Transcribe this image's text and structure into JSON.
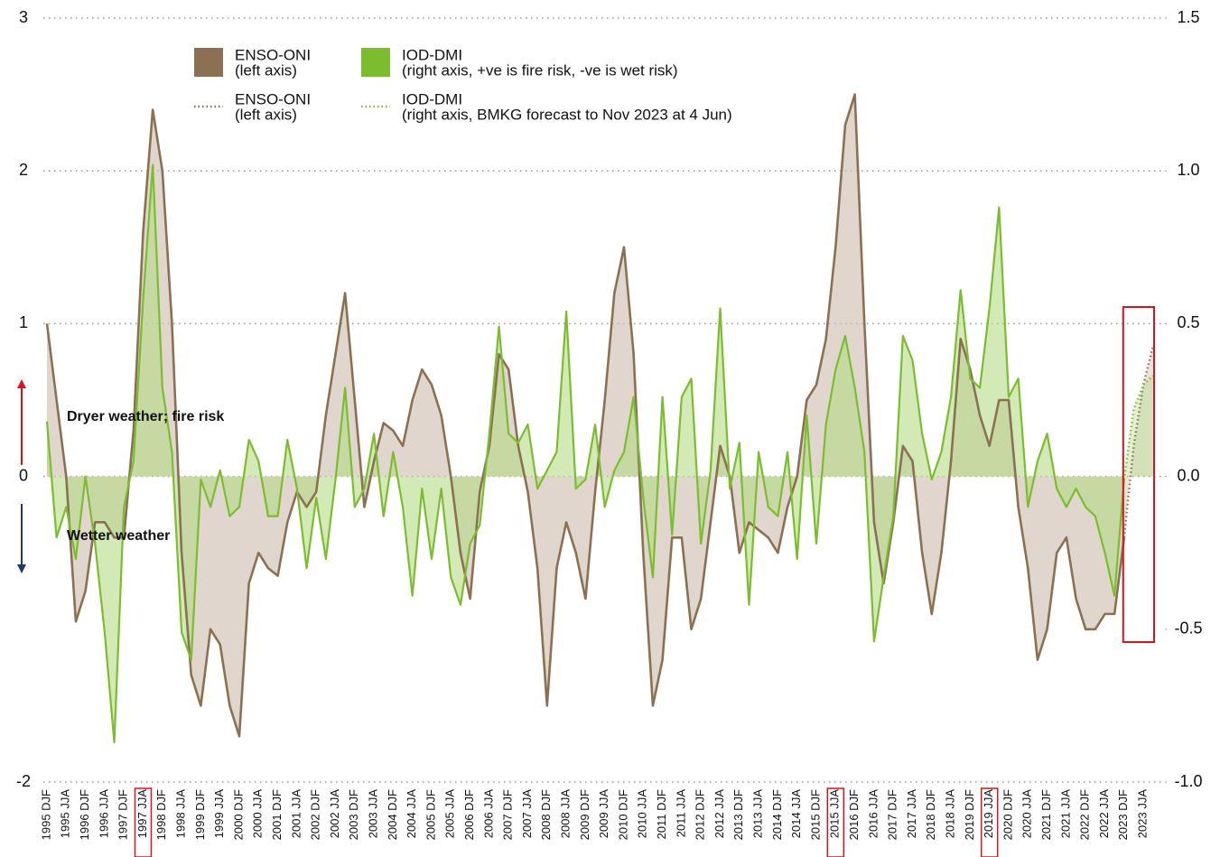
{
  "chart_data": {
    "type": "line",
    "annotations": [
      "Dryer weather; fire risk",
      "Wetter weather"
    ],
    "categories": [
      "1995 DJF",
      null,
      "1995 JJA",
      null,
      "1996 DJF",
      null,
      "1996 JJA",
      null,
      "1997 DJF",
      null,
      "1997 JJA",
      null,
      "1998 DJF",
      null,
      "1998 JJA",
      null,
      "1999 DJF",
      null,
      "1999 JJA",
      null,
      "2000 DJF",
      null,
      "2000 JJA",
      null,
      "2001 DJF",
      null,
      "2001 JJA",
      null,
      "2002 DJF",
      null,
      "2002 JJA",
      null,
      "2003 DJF",
      null,
      "2003 JJA",
      null,
      "2004 DJF",
      null,
      "2004 JJA",
      null,
      "2005 DJF",
      null,
      "2005 JJA",
      null,
      "2006 DJF",
      null,
      "2006 JJA",
      null,
      "2007 DJF",
      null,
      "2007 JJA",
      null,
      "2008 DJF",
      null,
      "2008 JJA",
      null,
      "2009 DJF",
      null,
      "2009 JJA",
      null,
      "2010 DJF",
      null,
      "2010 JJA",
      null,
      "2011 DJF",
      null,
      "2011 JJA",
      null,
      "2012 DJF",
      null,
      "2012 JJA",
      null,
      "2013 DJF",
      null,
      "2013 JJA",
      null,
      "2014 DJF",
      null,
      "2014 JJA",
      null,
      "2015 DJF",
      null,
      "2015 JJA",
      null,
      "2016 DJF",
      null,
      "2016 JJA",
      null,
      "2017 DJF",
      null,
      "2017 JJA",
      null,
      "2018 DJF",
      null,
      "2018 JJA",
      null,
      "2019 DJF",
      null,
      "2019 JJA",
      null,
      "2020 DJF",
      null,
      "2020 JJA",
      null,
      "2021 DJF",
      null,
      "2021 JJA",
      null,
      "2022 DJF",
      null,
      "2022 JJA",
      null,
      "2023 DJF",
      null,
      "2023 JJA",
      null
    ],
    "highlighted_categories": [
      10,
      82,
      98
    ],
    "series": [
      {
        "name": "ENSO-ONI",
        "legend_note": "(left axis)",
        "color": "#8b7152",
        "fill": "#cbbbab",
        "style": "solid",
        "axis": "y",
        "values": [
          1.0,
          0.5,
          0.0,
          -0.95,
          -0.75,
          -0.3,
          -0.3,
          -0.4,
          -0.4,
          0.3,
          1.6,
          2.4,
          2.0,
          1.0,
          -0.5,
          -1.3,
          -1.5,
          -1.0,
          -1.1,
          -1.5,
          -1.7,
          -0.7,
          -0.5,
          -0.6,
          -0.65,
          -0.3,
          -0.1,
          -0.2,
          -0.1,
          0.4,
          0.8,
          1.2,
          0.5,
          -0.2,
          0.1,
          0.35,
          0.3,
          0.2,
          0.5,
          0.7,
          0.6,
          0.4,
          0.0,
          -0.5,
          -0.8,
          -0.1,
          0.2,
          0.8,
          0.7,
          0.2,
          -0.1,
          -0.6,
          -1.5,
          -0.6,
          -0.3,
          -0.5,
          -0.8,
          -0.1,
          0.5,
          1.2,
          1.5,
          0.8,
          -0.5,
          -1.5,
          -1.2,
          -0.4,
          -0.4,
          -1.0,
          -0.8,
          -0.3,
          0.2,
          0.0,
          -0.5,
          -0.3,
          -0.35,
          -0.4,
          -0.5,
          -0.2,
          0.0,
          0.5,
          0.6,
          0.9,
          1.5,
          2.3,
          2.5,
          1.0,
          -0.3,
          -0.7,
          -0.3,
          0.2,
          0.1,
          -0.5,
          -0.9,
          -0.5,
          0.1,
          0.9,
          0.7,
          0.4,
          0.2,
          0.5,
          0.5,
          -0.2,
          -0.6,
          -1.2,
          -1.0,
          -0.5,
          -0.4,
          -0.8,
          -1.0,
          -1.0,
          -0.9,
          -0.9,
          -0.4,
          null,
          null,
          null
        ]
      },
      {
        "name": "IOD-DMI",
        "legend_note": "(right axis, +ve is fire risk, -ve is wet risk)",
        "color": "#7bbd2f",
        "fill": "#b5da85",
        "style": "solid",
        "axis": "y2",
        "values": [
          0.18,
          -0.2,
          -0.1,
          -0.27,
          0.0,
          -0.22,
          -0.51,
          -0.87,
          -0.1,
          0.05,
          0.58,
          1.02,
          0.29,
          0.08,
          -0.51,
          -0.6,
          -0.01,
          -0.1,
          0.02,
          -0.13,
          -0.1,
          0.12,
          0.05,
          -0.13,
          -0.13,
          0.12,
          -0.04,
          -0.3,
          -0.07,
          -0.27,
          -0.01,
          0.29,
          -0.1,
          -0.04,
          0.14,
          -0.13,
          0.08,
          -0.1,
          -0.39,
          -0.04,
          -0.27,
          -0.04,
          -0.33,
          -0.42,
          -0.22,
          -0.16,
          0.14,
          0.49,
          0.14,
          0.11,
          0.17,
          -0.04,
          0.02,
          0.08,
          0.54,
          -0.04,
          -0.01,
          0.17,
          -0.1,
          0.02,
          0.08,
          0.26,
          -0.07,
          -0.33,
          0.26,
          -0.19,
          0.26,
          0.32,
          -0.22,
          0.02,
          0.55,
          -0.04,
          0.11,
          -0.42,
          0.08,
          -0.1,
          -0.13,
          0.08,
          -0.27,
          0.2,
          -0.22,
          0.17,
          0.35,
          0.46,
          0.29,
          0.08,
          -0.54,
          -0.33,
          -0.13,
          0.46,
          0.38,
          0.14,
          -0.01,
          0.08,
          0.26,
          0.61,
          0.32,
          0.29,
          0.55,
          0.88,
          0.26,
          0.32,
          -0.1,
          0.05,
          0.14,
          -0.04,
          -0.1,
          -0.04,
          -0.1,
          -0.13,
          -0.25,
          -0.39,
          -0.01,
          null,
          null,
          null
        ]
      },
      {
        "name": "ENSO-ONI",
        "legend_note": "(left axis)",
        "color": "#8b7152",
        "fill": "#cbbbab",
        "style": "dotted",
        "axis": "y",
        "values": [
          null,
          null,
          null,
          null,
          null,
          null,
          null,
          null,
          null,
          null,
          null,
          null,
          null,
          null,
          null,
          null,
          null,
          null,
          null,
          null,
          null,
          null,
          null,
          null,
          null,
          null,
          null,
          null,
          null,
          null,
          null,
          null,
          null,
          null,
          null,
          null,
          null,
          null,
          null,
          null,
          null,
          null,
          null,
          null,
          null,
          null,
          null,
          null,
          null,
          null,
          null,
          null,
          null,
          null,
          null,
          null,
          null,
          null,
          null,
          null,
          null,
          null,
          null,
          null,
          null,
          null,
          null,
          null,
          null,
          null,
          null,
          null,
          null,
          null,
          null,
          null,
          null,
          null,
          null,
          null,
          null,
          null,
          null,
          null,
          null,
          null,
          null,
          null,
          null,
          null,
          null,
          null,
          null,
          null,
          null,
          null,
          null,
          null,
          null,
          null,
          null,
          null,
          null,
          null,
          null,
          null,
          null,
          null,
          null,
          null,
          null,
          null,
          -0.4,
          0.2,
          0.6,
          0.85
        ]
      },
      {
        "name": "IOD-DMI",
        "legend_note": "(right axis, BMKG forecast to Nov 2023 at 4 Jun)",
        "color": "#7bbd2f",
        "fill": "#b5da85",
        "style": "dotted",
        "axis": "y2",
        "values": [
          null,
          null,
          null,
          null,
          null,
          null,
          null,
          null,
          null,
          null,
          null,
          null,
          null,
          null,
          null,
          null,
          null,
          null,
          null,
          null,
          null,
          null,
          null,
          null,
          null,
          null,
          null,
          null,
          null,
          null,
          null,
          null,
          null,
          null,
          null,
          null,
          null,
          null,
          null,
          null,
          null,
          null,
          null,
          null,
          null,
          null,
          null,
          null,
          null,
          null,
          null,
          null,
          null,
          null,
          null,
          null,
          null,
          null,
          null,
          null,
          null,
          null,
          null,
          null,
          null,
          null,
          null,
          null,
          null,
          null,
          null,
          null,
          null,
          null,
          null,
          null,
          null,
          null,
          null,
          null,
          null,
          null,
          null,
          null,
          null,
          null,
          null,
          null,
          null,
          null,
          null,
          null,
          null,
          null,
          null,
          null,
          null,
          null,
          null,
          null,
          null,
          null,
          null,
          null,
          null,
          null,
          null,
          null,
          null,
          null,
          null,
          null,
          -0.01,
          0.22,
          0.3,
          0.33
        ]
      }
    ],
    "ylim": [
      -2,
      3
    ],
    "yticks": [
      -2,
      0,
      1,
      2,
      3
    ],
    "y2lim": [
      -1,
      1.5
    ],
    "y2ticks": [
      {
        "value": -1,
        "label": "-1.0"
      },
      {
        "value": -0.5,
        "label": "-0.5"
      },
      {
        "value": 0,
        "label": "0.0"
      },
      {
        "value": 0.5,
        "label": "0.5"
      },
      {
        "value": 1,
        "label": "1.0"
      },
      1.5
    ],
    "grid": true
  }
}
